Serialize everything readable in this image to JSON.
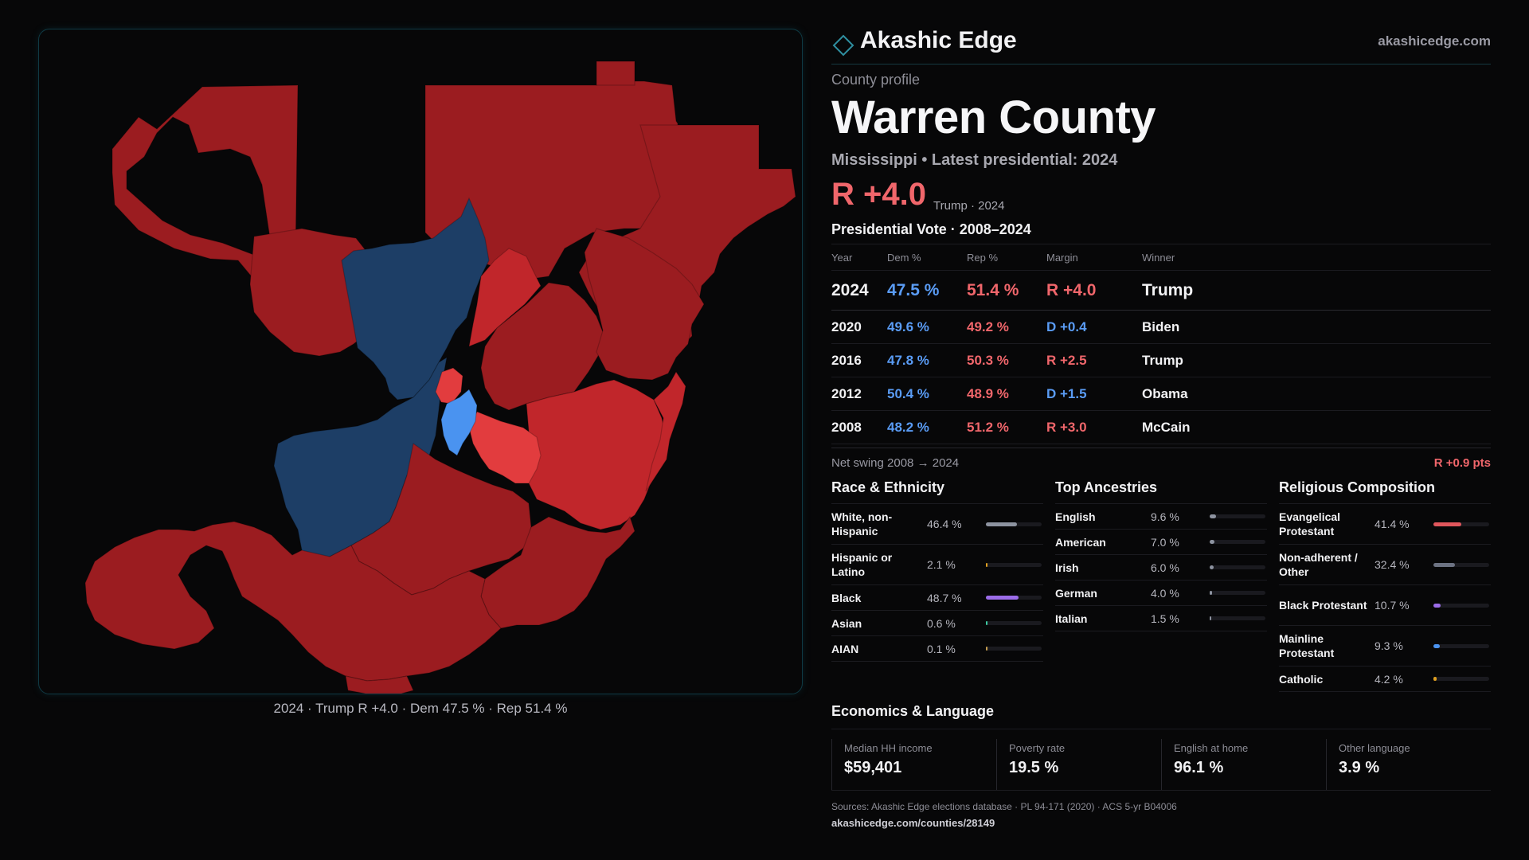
{
  "brand": {
    "name": "Akashic Edge",
    "url": "akashicedge.com"
  },
  "colors": {
    "rep_dark": "#9b1c20",
    "rep_mid": "#c1262b",
    "rep_light": "#e23c3e",
    "dem_dark": "#1d3e66",
    "dem_light": "#4a93f0",
    "accent": "#2f8fa0"
  },
  "map": {
    "caption": "2024 · Trump R +4.0 · Dem 47.5 % · Rep 51.4 %"
  },
  "profile": {
    "eyebrow": "County profile",
    "county": "Warren County",
    "subtitle": "Mississippi • Latest presidential: 2024",
    "margin": "R +4.0",
    "margin_note": "Trump · 2024"
  },
  "votes": {
    "title": "Presidential Vote · 2008–2024",
    "headers": {
      "year": "Year",
      "dem": "Dem %",
      "rep": "Rep %",
      "margin": "Margin",
      "winner": "Winner"
    },
    "rows": [
      {
        "year": "2024",
        "dem": "47.5 %",
        "rep": "51.4 %",
        "margin": "R +4.0",
        "winner": "Trump",
        "party": "R"
      },
      {
        "year": "2020",
        "dem": "49.6 %",
        "rep": "49.2 %",
        "margin": "D +0.4",
        "winner": "Biden",
        "party": "D"
      },
      {
        "year": "2016",
        "dem": "47.8 %",
        "rep": "50.3 %",
        "margin": "R +2.5",
        "winner": "Trump",
        "party": "R"
      },
      {
        "year": "2012",
        "dem": "50.4 %",
        "rep": "48.9 %",
        "margin": "D +1.5",
        "winner": "Obama",
        "party": "D"
      },
      {
        "year": "2008",
        "dem": "48.2 %",
        "rep": "51.2 %",
        "margin": "R +3.0",
        "winner": "McCain",
        "party": "R"
      }
    ],
    "net_swing_label": "Net swing 2008 → 2024",
    "net_swing_value": "R +0.9 pts"
  },
  "race": {
    "title": "Race & Ethnicity",
    "items": [
      {
        "name": "White, non-Hispanic",
        "pct": "46.4 %",
        "value": 46.4,
        "color": "#8d93a0"
      },
      {
        "name": "Hispanic or Latino",
        "pct": "2.1 %",
        "value": 2.1,
        "color": "#e0a020"
      },
      {
        "name": "Black",
        "pct": "48.7 %",
        "value": 48.7,
        "color": "#9b6ce8"
      },
      {
        "name": "Asian",
        "pct": "0.6 %",
        "value": 0.6,
        "color": "#3cc8a0"
      },
      {
        "name": "AIAN",
        "pct": "0.1 %",
        "value": 0.1,
        "color": "#c8a050"
      }
    ]
  },
  "ancestry": {
    "title": "Top Ancestries",
    "items": [
      {
        "name": "English",
        "pct": "9.6 %",
        "value": 9.6,
        "color": "#8d93a0"
      },
      {
        "name": "American",
        "pct": "7.0 %",
        "value": 7.0,
        "color": "#8d93a0"
      },
      {
        "name": "Irish",
        "pct": "6.0 %",
        "value": 6.0,
        "color": "#8d93a0"
      },
      {
        "name": "German",
        "pct": "4.0 %",
        "value": 4.0,
        "color": "#8d93a0"
      },
      {
        "name": "Italian",
        "pct": "1.5 %",
        "value": 1.5,
        "color": "#8d93a0"
      }
    ]
  },
  "religion": {
    "title": "Religious Composition",
    "items": [
      {
        "name": "Evangelical Protestant",
        "pct": "41.4 %",
        "value": 41.4,
        "color": "#e0565c"
      },
      {
        "name": "Non-adherent / Other",
        "pct": "32.4 %",
        "value": 32.4,
        "color": "#6c7282"
      },
      {
        "name": "Black Protestant",
        "pct": "10.7 %",
        "value": 10.7,
        "color": "#9b6ce8"
      },
      {
        "name": "Mainline Protestant",
        "pct": "9.3 %",
        "value": 9.3,
        "color": "#4a93f0"
      },
      {
        "name": "Catholic",
        "pct": "4.2 %",
        "value": 4.2,
        "color": "#e0a020"
      }
    ]
  },
  "economics": {
    "title": "Economics & Language",
    "items": [
      {
        "label": "Median HH income",
        "value": "$59,401"
      },
      {
        "label": "Poverty rate",
        "value": "19.5 %"
      },
      {
        "label": "English at home",
        "value": "96.1 %"
      },
      {
        "label": "Other language",
        "value": "3.9 %"
      }
    ]
  },
  "sources": {
    "text": "Sources: Akashic Edge elections database · PL 94-171 (2020) · ACS 5-yr B04006",
    "url": "akashicedge.com/counties/28149"
  }
}
